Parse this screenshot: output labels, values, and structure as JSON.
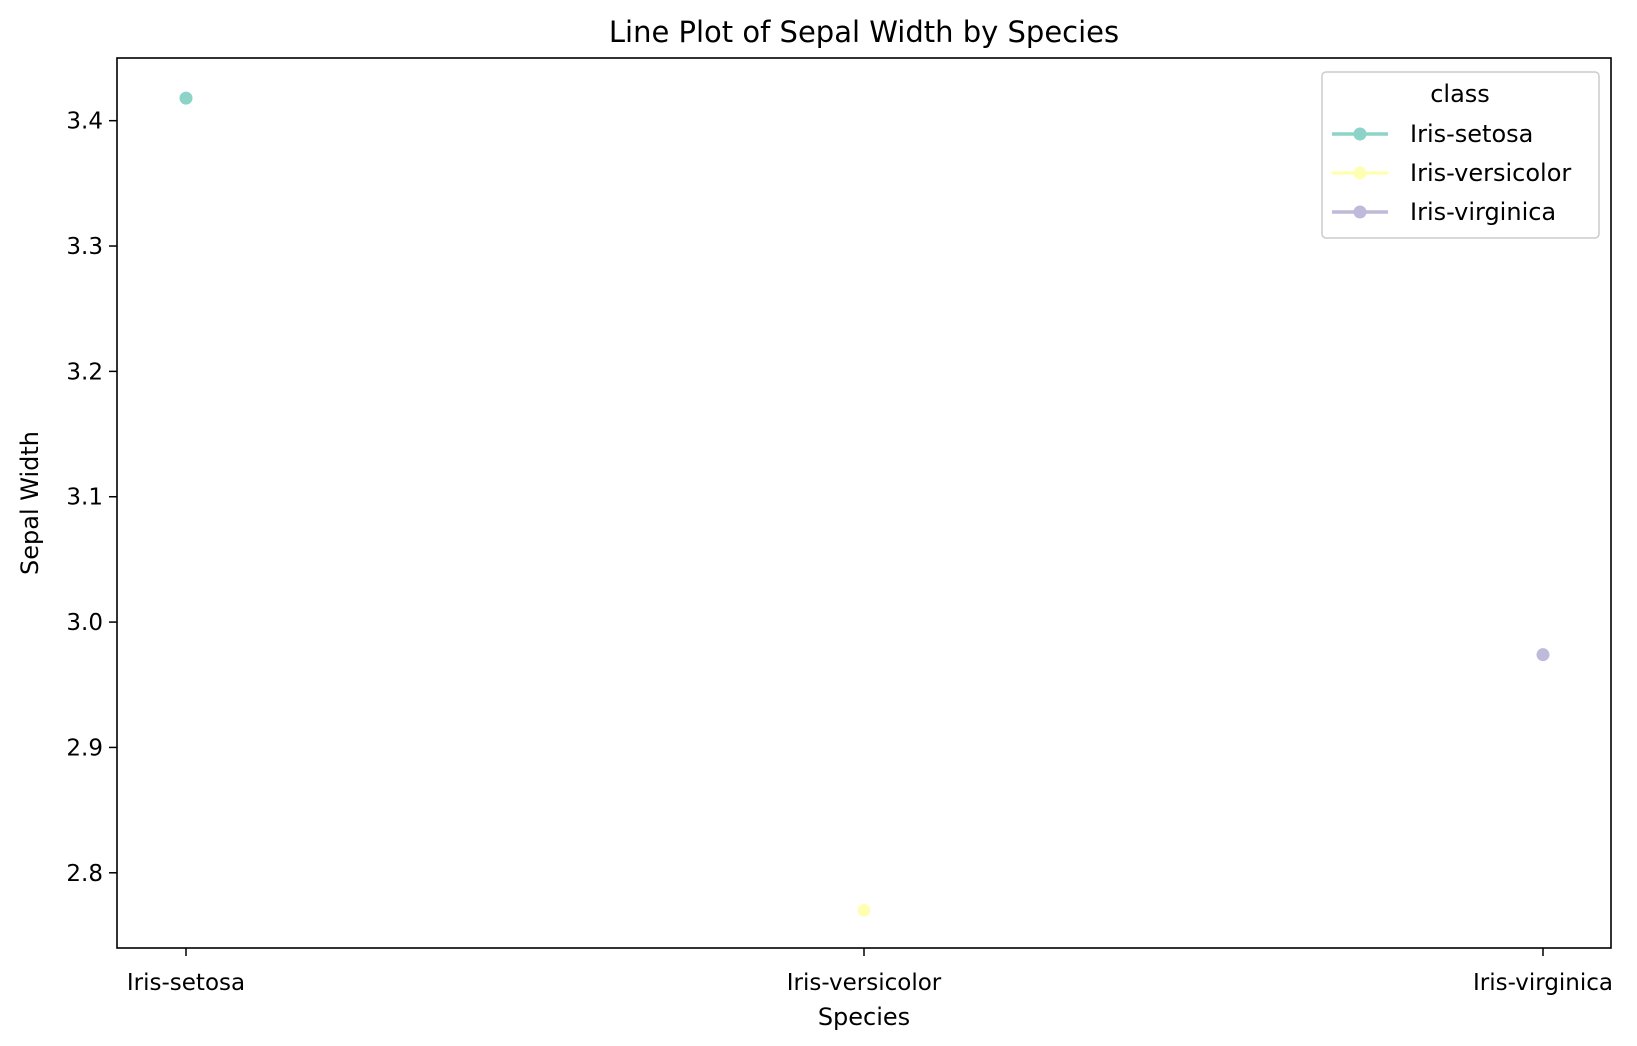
{
  "chart_data": {
    "type": "line",
    "title": "Line Plot of Sepal Width by Species",
    "xlabel": "Species",
    "ylabel": "Sepal Width",
    "categories": [
      "Iris-setosa",
      "Iris-versicolor",
      "Iris-virginica"
    ],
    "ylim": [
      2.74,
      3.45
    ],
    "yticks": [
      "2.8",
      "2.9",
      "3.0",
      "3.1",
      "3.2",
      "3.3",
      "3.4"
    ],
    "grid": false,
    "legend": {
      "title": "class",
      "placement": "top-right"
    },
    "series": [
      {
        "name": "Iris-setosa",
        "color": "#8dd3c7",
        "x": "Iris-setosa",
        "y": 3.418
      },
      {
        "name": "Iris-versicolor",
        "color": "#ffffb3",
        "x": "Iris-versicolor",
        "y": 2.77
      },
      {
        "name": "Iris-virginica",
        "color": "#bebada",
        "x": "Iris-virginica",
        "y": 2.974
      }
    ]
  }
}
